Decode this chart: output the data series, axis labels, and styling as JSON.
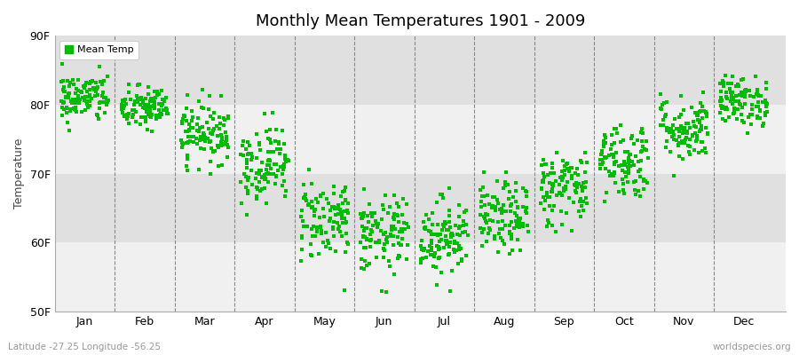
{
  "title": "Monthly Mean Temperatures 1901 - 2009",
  "ylabel": "Temperature",
  "xlabel_labels": [
    "Jan",
    "Feb",
    "Mar",
    "Apr",
    "May",
    "Jun",
    "Jul",
    "Aug",
    "Sep",
    "Oct",
    "Nov",
    "Dec"
  ],
  "ytick_labels": [
    "50F",
    "60F",
    "70F",
    "80F",
    "90F"
  ],
  "ytick_values": [
    50,
    60,
    70,
    80,
    90
  ],
  "ylim": [
    50,
    90
  ],
  "legend_label": "Mean Temp",
  "dot_color": "#00bb00",
  "dot_size": 6,
  "bg_color": "#ffffff",
  "plot_bg_color_light": "#f0f0f0",
  "plot_bg_color_dark": "#e0e0e0",
  "footer_left": "Latitude -27.25 Longitude -56.25",
  "footer_right": "worldspecies.org",
  "monthly_mean_F": [
    81.0,
    79.5,
    76.0,
    71.5,
    63.5,
    61.0,
    61.0,
    63.5,
    68.0,
    72.0,
    76.5,
    80.5
  ],
  "monthly_std_F": [
    1.8,
    1.6,
    2.2,
    2.8,
    3.0,
    2.8,
    2.8,
    2.6,
    2.8,
    2.8,
    2.4,
    1.8
  ],
  "n_years": 109,
  "seed": 42
}
